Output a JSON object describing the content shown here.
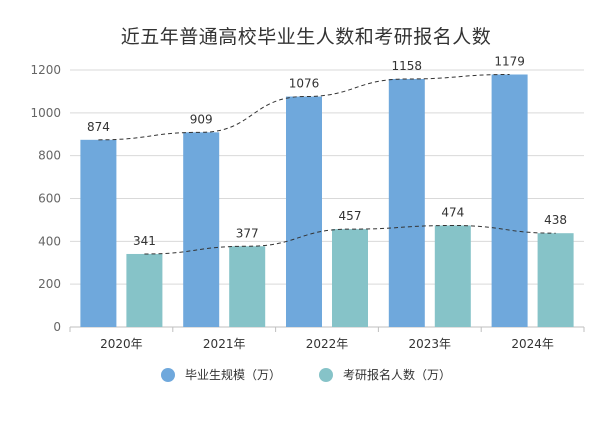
{
  "chart_data": {
    "type": "bar",
    "title": "近五年普通高校毕业生人数和考研报名人数",
    "categories": [
      "2020年",
      "2021年",
      "2022年",
      "2023年",
      "2024年"
    ],
    "series": [
      {
        "name": "毕业生规模（万）",
        "values": [
          874,
          909,
          1076,
          1158,
          1179
        ],
        "color": "#6fa8dc"
      },
      {
        "name": "考研报名人数（万）",
        "values": [
          341,
          377,
          457,
          474,
          438
        ],
        "color": "#86c3c8"
      }
    ],
    "trendlines": "dashed smooth curve over each series",
    "ylim": [
      0,
      1200
    ],
    "yticks": [
      0,
      200,
      400,
      600,
      800,
      1000,
      1200
    ],
    "grid": true,
    "legend_position": "bottom"
  }
}
